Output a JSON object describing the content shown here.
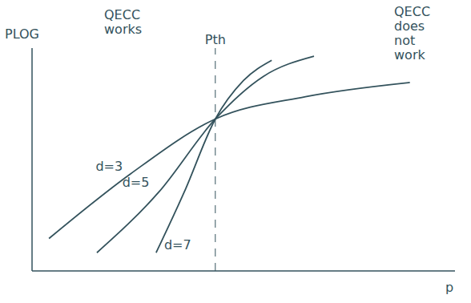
{
  "chart_data": {
    "type": "line",
    "xlabel": "p",
    "ylabel": "PLOG",
    "xlim": [
      0,
      15
    ],
    "ylim": [
      0,
      11
    ],
    "tick_labels": false,
    "grid": false,
    "color": "#33525c",
    "threshold": {
      "value": 6.5,
      "label": "Pth"
    },
    "annotations": [
      "QECC works",
      "QECC does not work"
    ],
    "series": [
      {
        "name": "d=3",
        "color": "#33525c",
        "x": [
          0.6,
          3.5,
          6.5,
          9.7,
          13.4
        ],
        "values": [
          1.6,
          4.8,
          7.5,
          8.6,
          9.3
        ]
      },
      {
        "name": "d=5",
        "color": "#33525c",
        "x": [
          2.3,
          4.5,
          6.5,
          8.2,
          10.0
        ],
        "values": [
          0.9,
          3.9,
          7.5,
          9.6,
          10.6
        ]
      },
      {
        "name": "d=7",
        "color": "#33525c",
        "x": [
          4.4,
          5.4,
          6.5,
          7.5,
          8.5
        ],
        "values": [
          0.9,
          3.9,
          7.5,
          9.4,
          10.4
        ]
      }
    ]
  }
}
